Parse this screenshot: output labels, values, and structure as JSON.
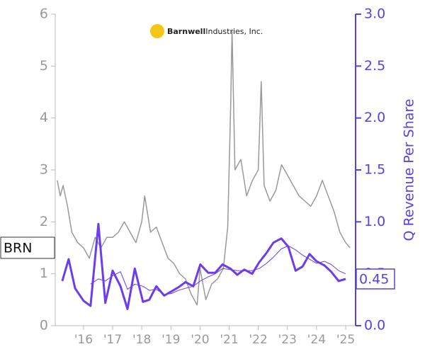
{
  "logo": {
    "name": "Barnwell",
    "suffix": "Industries, Inc."
  },
  "ticker": "BRN",
  "chart_data": {
    "type": "line",
    "y2_label": "Q Revenue Per Share",
    "xlim": [
      2015.03,
      2025.34
    ],
    "xticks": [
      {
        "value": 2016,
        "label": "'16"
      },
      {
        "value": 2017,
        "label": "'17"
      },
      {
        "value": 2018,
        "label": "'18"
      },
      {
        "value": 2019,
        "label": "'19"
      },
      {
        "value": 2020,
        "label": "'20"
      },
      {
        "value": 2021,
        "label": "'21"
      },
      {
        "value": 2022,
        "label": "'22"
      },
      {
        "value": 2023,
        "label": "'23"
      },
      {
        "value": 2024,
        "label": "'24"
      },
      {
        "value": 2025,
        "label": "'25"
      }
    ],
    "ylim": [
      0,
      6
    ],
    "yticks": [
      0,
      1,
      2,
      3,
      4,
      5,
      6
    ],
    "y2lim": [
      0,
      3
    ],
    "y2ticks": [
      {
        "value": 0,
        "label": "0.0"
      },
      {
        "value": 0.5,
        "label": "0.5"
      },
      {
        "value": 1,
        "label": "1.0"
      },
      {
        "value": 1.5,
        "label": "1.5"
      },
      {
        "value": 2,
        "label": "2.0"
      },
      {
        "value": 2.5,
        "label": "2.5"
      },
      {
        "value": 3,
        "label": "3.0"
      }
    ],
    "series": [
      {
        "color": "#999999",
        "width": 1.5,
        "x": [
          2015.1,
          2015.2,
          2015.3,
          2015.45,
          2015.6,
          2015.8,
          2016.0,
          2016.2,
          2016.4,
          2016.6,
          2016.8,
          2017.0,
          2017.2,
          2017.4,
          2017.6,
          2017.8,
          2018.0,
          2018.1,
          2018.3,
          2018.5,
          2018.7,
          2018.9,
          2019.1,
          2019.3,
          2019.5,
          2019.7,
          2019.9,
          2020.0,
          2020.2,
          2020.4,
          2020.6,
          2020.8,
          2020.95,
          2021.05,
          2021.1,
          2021.2,
          2021.4,
          2021.6,
          2021.8,
          2022.0,
          2022.1,
          2022.2,
          2022.4,
          2022.6,
          2022.8,
          2023.0,
          2023.2,
          2023.4,
          2023.6,
          2023.8,
          2024.0,
          2024.2,
          2024.4,
          2024.6,
          2024.8,
          2025.0,
          2025.15
        ],
        "values": [
          2.8,
          2.5,
          2.7,
          2.3,
          1.8,
          1.6,
          1.5,
          1.3,
          1.7,
          1.5,
          1.7,
          1.7,
          1.8,
          2.0,
          1.8,
          1.6,
          2.0,
          2.5,
          1.8,
          1.9,
          1.6,
          1.3,
          1.2,
          1.0,
          0.9,
          0.6,
          0.4,
          1.1,
          0.5,
          0.8,
          0.9,
          1.1,
          1.9,
          4.2,
          5.7,
          3.0,
          3.2,
          2.5,
          2.8,
          3.0,
          4.7,
          2.7,
          2.4,
          2.6,
          3.1,
          2.9,
          2.7,
          2.5,
          2.4,
          2.3,
          2.5,
          2.8,
          2.5,
          2.2,
          1.8,
          1.6,
          1.5
        ]
      },
      {
        "color": "#6a3df0",
        "width": 3,
        "axis": "y2",
        "x": [
          2015.27,
          2015.49,
          2015.71,
          2016.0,
          2016.24,
          2016.51,
          2016.75,
          2017.0,
          2017.27,
          2017.51,
          2017.76,
          2018.04,
          2018.26,
          2018.5,
          2018.77,
          2019.02,
          2019.26,
          2019.5,
          2019.77,
          2020.01,
          2020.28,
          2020.52,
          2020.77,
          2021.04,
          2021.28,
          2021.52,
          2021.79,
          2022.03,
          2022.28,
          2022.52,
          2022.79,
          2023.03,
          2023.28,
          2023.52,
          2023.76,
          2024.0,
          2024.27,
          2024.5,
          2024.76,
          2025.0
        ],
        "values": [
          0.43,
          0.64,
          0.36,
          0.24,
          0.19,
          0.98,
          0.22,
          0.53,
          0.38,
          0.16,
          0.55,
          0.23,
          0.25,
          0.38,
          0.29,
          0.33,
          0.37,
          0.42,
          0.38,
          0.59,
          0.51,
          0.51,
          0.59,
          0.55,
          0.49,
          0.54,
          0.5,
          0.61,
          0.7,
          0.8,
          0.84,
          0.76,
          0.53,
          0.57,
          0.69,
          0.62,
          0.58,
          0.52,
          0.43,
          0.45
        ]
      },
      {
        "color": "#6a3df0",
        "width": 1,
        "axis": "y2",
        "x": [
          2016.24,
          2016.51,
          2016.75,
          2017.0,
          2017.27,
          2017.51,
          2017.76,
          2018.04,
          2018.26,
          2018.5,
          2018.77,
          2019.02,
          2019.26,
          2019.5,
          2019.77,
          2020.01,
          2020.28,
          2020.52,
          2020.77,
          2021.04,
          2021.28,
          2021.52,
          2021.79,
          2022.03,
          2022.28,
          2022.52,
          2022.79,
          2023.03,
          2023.28,
          2023.52,
          2023.76,
          2024.0,
          2024.27,
          2024.5,
          2024.76,
          2025.0
        ],
        "values": [
          0.4,
          0.45,
          0.43,
          0.48,
          0.52,
          0.35,
          0.4,
          0.38,
          0.34,
          0.35,
          0.3,
          0.31,
          0.34,
          0.36,
          0.38,
          0.43,
          0.47,
          0.5,
          0.55,
          0.54,
          0.53,
          0.53,
          0.53,
          0.55,
          0.6,
          0.66,
          0.74,
          0.77,
          0.73,
          0.68,
          0.64,
          0.6,
          0.62,
          0.59,
          0.53,
          0.5
        ]
      }
    ]
  }
}
